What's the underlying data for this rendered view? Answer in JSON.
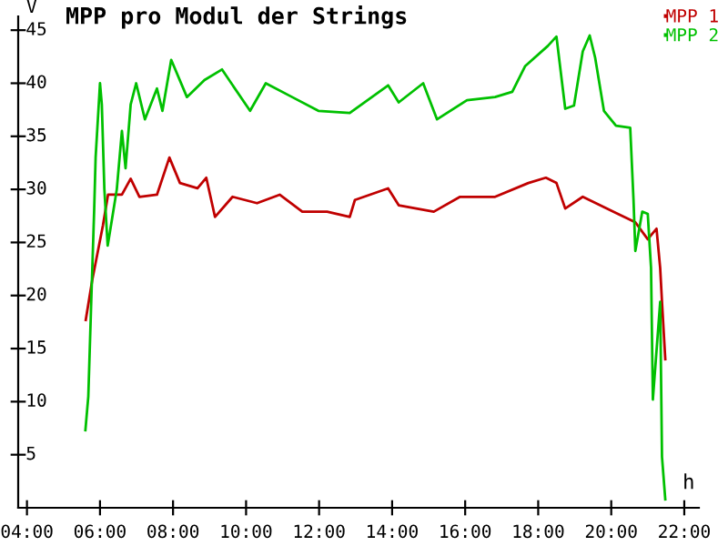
{
  "chart_data": {
    "type": "line",
    "title": "MPP pro Modul der Strings",
    "xlabel": "h",
    "ylabel": "V",
    "xlim": [
      3.76,
      22.4
    ],
    "ylim": [
      0,
      46.3
    ],
    "xticks": [
      {
        "value": 4,
        "label": "04:00"
      },
      {
        "value": 6,
        "label": "06:00"
      },
      {
        "value": 8,
        "label": "08:00"
      },
      {
        "value": 10,
        "label": "10:00"
      },
      {
        "value": 12,
        "label": "12:00"
      },
      {
        "value": 14,
        "label": "14:00"
      },
      {
        "value": 16,
        "label": "16:00"
      },
      {
        "value": 18,
        "label": "18:00"
      },
      {
        "value": 20,
        "label": "20:00"
      },
      {
        "value": 22,
        "label": "22:00"
      }
    ],
    "yticks": [
      5,
      10,
      15,
      20,
      25,
      30,
      35,
      40,
      45
    ],
    "grid": false,
    "legend": "top right",
    "marker": "none",
    "line_style": "solid",
    "series": [
      {
        "name": "MPP 1",
        "color": "#c00000",
        "x": [
          5.61,
          5.79,
          6.08,
          6.22,
          6.6,
          6.84,
          7.08,
          7.56,
          7.9,
          8.19,
          8.67,
          8.91,
          9.15,
          9.63,
          10.3,
          10.92,
          11.54,
          12.22,
          12.84,
          12.98,
          13.89,
          14.18,
          15.14,
          15.86,
          16.82,
          17.73,
          18.21,
          18.5,
          18.74,
          19.22,
          20.18,
          20.66,
          21.0,
          21.24,
          21.34,
          21.39,
          21.48
        ],
        "values": [
          17.7,
          21.5,
          26.6,
          29.5,
          29.5,
          31,
          29.3,
          29.5,
          33,
          30.6,
          30.1,
          31.1,
          27.4,
          29.3,
          28.7,
          29.5,
          27.9,
          27.9,
          27.4,
          29,
          30.1,
          28.5,
          27.9,
          29.3,
          29.3,
          30.6,
          31.1,
          30.6,
          28.2,
          29.3,
          27.7,
          26.9,
          25.3,
          26.3,
          22.6,
          19.4,
          14
        ]
      },
      {
        "name": "MPP 2",
        "color": "#00c000",
        "x": [
          5.6,
          5.68,
          5.76,
          5.84,
          5.88,
          6.0,
          6.05,
          6.12,
          6.21,
          6.32,
          6.46,
          6.6,
          6.7,
          6.84,
          6.99,
          7.23,
          7.56,
          7.71,
          7.95,
          8.38,
          8.86,
          9.34,
          10.11,
          10.54,
          11.26,
          11.98,
          12.84,
          13.89,
          14.18,
          14.85,
          15.23,
          16.05,
          16.82,
          17.29,
          17.64,
          18.26,
          18.5,
          18.74,
          18.98,
          19.22,
          19.41,
          19.56,
          19.8,
          20.13,
          20.52,
          20.61,
          20.66,
          20.85,
          21.0,
          21.09,
          21.14,
          21.34,
          21.39,
          21.48
        ],
        "values": [
          7.3,
          10.5,
          19.4,
          28,
          33,
          40,
          38,
          30,
          24.7,
          27,
          30,
          35.5,
          32,
          38,
          40,
          36.6,
          39.5,
          37.4,
          42.2,
          38.7,
          40.3,
          41.3,
          37.4,
          40,
          38.7,
          37.4,
          37.2,
          39.8,
          38.2,
          40,
          36.6,
          38.4,
          38.7,
          39.2,
          41.6,
          43.5,
          44.4,
          37.6,
          37.9,
          43,
          44.5,
          42.4,
          37.4,
          36,
          35.8,
          29,
          24.2,
          27.9,
          27.7,
          22.6,
          10.2,
          19.4,
          4.8,
          0.8
        ]
      }
    ]
  }
}
